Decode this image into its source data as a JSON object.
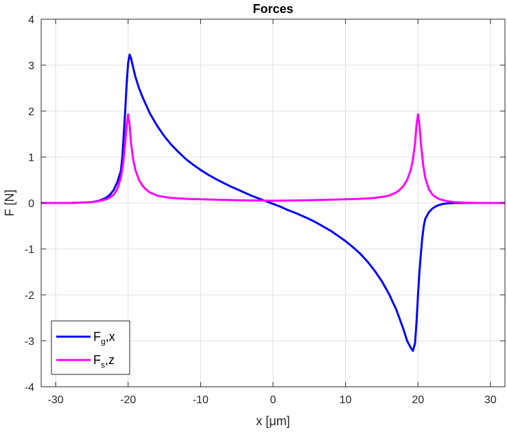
{
  "chart_data": {
    "type": "line",
    "title": "Forces",
    "xlabel_main": "x [",
    "xlabel_mu": "μ",
    "xlabel_unit": "m]",
    "ylabel": "F [N]",
    "xlim": [
      -32,
      32
    ],
    "ylim": [
      -4,
      4
    ],
    "xticks": [
      -30,
      -20,
      -10,
      0,
      10,
      20,
      30
    ],
    "yticks": [
      -4,
      -3,
      -2,
      -1,
      0,
      1,
      2,
      3,
      4
    ],
    "grid": true,
    "legend_position": "bottom-left",
    "series": [
      {
        "name_main": "F",
        "name_sub": "g",
        "name_suffix": ",x",
        "color": "#0000ff",
        "x": [
          -32,
          -28,
          -26,
          -25,
          -24,
          -23.5,
          -23,
          -22.5,
          -22,
          -21.5,
          -21,
          -20.8,
          -20.6,
          -20.4,
          -20.2,
          -20,
          -19.8,
          -19.6,
          -19.3,
          -19,
          -18.5,
          -18,
          -17,
          -16,
          -15,
          -14,
          -13,
          -12,
          -11,
          -10,
          -9,
          -8,
          -7,
          -6,
          -5,
          -4,
          -3,
          -2,
          -1,
          0,
          1,
          2,
          3,
          4,
          5,
          6,
          7,
          8,
          9,
          10,
          11,
          12,
          13,
          14,
          15,
          16,
          17,
          18,
          18.5,
          19,
          19.3,
          19.6,
          19.8,
          20,
          20.2,
          20.4,
          20.6,
          20.8,
          21,
          21.5,
          22,
          22.5,
          23,
          23.5,
          24,
          25,
          26,
          28,
          32
        ],
        "y": [
          0,
          0,
          0.01,
          0.02,
          0.05,
          0.08,
          0.12,
          0.18,
          0.28,
          0.45,
          0.7,
          1.0,
          1.5,
          2.0,
          2.6,
          3.05,
          3.23,
          3.15,
          2.95,
          2.75,
          2.5,
          2.3,
          1.95,
          1.68,
          1.45,
          1.26,
          1.1,
          0.95,
          0.83,
          0.72,
          0.62,
          0.53,
          0.45,
          0.37,
          0.3,
          0.23,
          0.16,
          0.1,
          0.04,
          -0.02,
          -0.08,
          -0.15,
          -0.21,
          -0.28,
          -0.35,
          -0.43,
          -0.52,
          -0.61,
          -0.72,
          -0.83,
          -0.96,
          -1.1,
          -1.27,
          -1.47,
          -1.7,
          -1.98,
          -2.32,
          -2.75,
          -3.0,
          -3.15,
          -3.22,
          -3.05,
          -2.6,
          -2.0,
          -1.5,
          -1.1,
          -0.75,
          -0.5,
          -0.35,
          -0.2,
          -0.12,
          -0.07,
          -0.04,
          -0.02,
          -0.01,
          0,
          0,
          0,
          0
        ]
      },
      {
        "name_main": "F",
        "name_sub": "s",
        "name_suffix": ",z",
        "color": "#ff00ff",
        "x": [
          -32,
          -28,
          -26,
          -25,
          -24,
          -23,
          -22.5,
          -22,
          -21.5,
          -21,
          -20.7,
          -20.4,
          -20.2,
          -20,
          -19.8,
          -19.6,
          -19.3,
          -19,
          -18.5,
          -18,
          -17.5,
          -17,
          -16,
          -15,
          -14,
          -12,
          -10,
          -5,
          0,
          5,
          10,
          12,
          14,
          15,
          16,
          17,
          17.5,
          18,
          18.5,
          19,
          19.3,
          19.6,
          19.8,
          20,
          20.2,
          20.4,
          20.7,
          21,
          21.5,
          22,
          22.5,
          23,
          24,
          25,
          26,
          28,
          32
        ],
        "y": [
          0,
          0,
          0.01,
          0.02,
          0.04,
          0.08,
          0.12,
          0.18,
          0.3,
          0.55,
          0.85,
          1.3,
          1.7,
          1.93,
          1.7,
          1.3,
          0.95,
          0.72,
          0.5,
          0.37,
          0.29,
          0.23,
          0.16,
          0.13,
          0.11,
          0.09,
          0.08,
          0.06,
          0.05,
          0.06,
          0.08,
          0.09,
          0.11,
          0.13,
          0.16,
          0.23,
          0.29,
          0.37,
          0.5,
          0.72,
          0.95,
          1.3,
          1.7,
          1.93,
          1.7,
          1.3,
          0.85,
          0.55,
          0.3,
          0.18,
          0.12,
          0.08,
          0.04,
          0.02,
          0.01,
          0,
          0
        ]
      }
    ]
  }
}
